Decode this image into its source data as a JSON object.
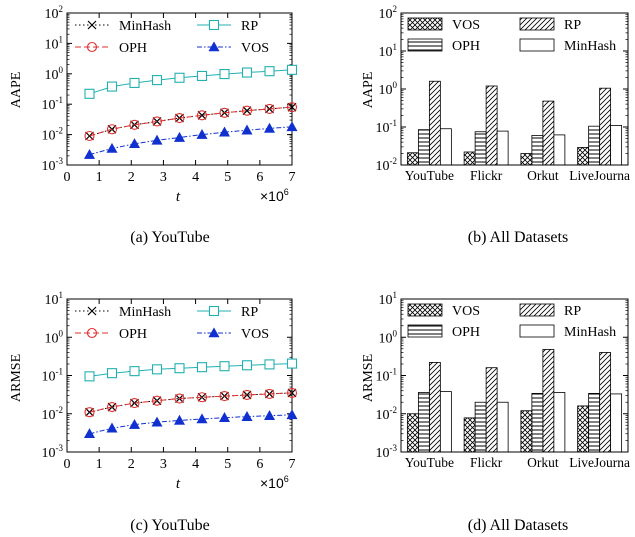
{
  "chart_data": [
    {
      "id": "a",
      "type": "line",
      "caption": "(a) YouTube",
      "xlabel": "t",
      "ylabel": "AAPE",
      "x_multiplier_label": "×10",
      "x_multiplier_exp": "6",
      "yscale": "log",
      "xlim": [
        0,
        7
      ],
      "ylim": [
        0.001,
        100
      ],
      "xticks": [
        "0",
        "1",
        "2",
        "3",
        "4",
        "5",
        "6",
        "7"
      ],
      "yticks_exp": [
        "-3",
        "-2",
        "-1",
        "0",
        "1",
        "2"
      ],
      "x": [
        0.7,
        1.4,
        2.1,
        2.8,
        3.5,
        4.2,
        4.9,
        5.6,
        6.3,
        7.0
      ],
      "series": [
        {
          "name": "MinHash",
          "marker": "x",
          "dash": "1.5,2.5",
          "color": "#000000",
          "values": [
            0.009,
            0.015,
            0.021,
            0.027,
            0.035,
            0.043,
            0.052,
            0.061,
            0.07,
            0.08
          ]
        },
        {
          "name": "OPH",
          "marker": "circle",
          "dash": "6,3",
          "color": "#e03030",
          "values": [
            0.009,
            0.015,
            0.021,
            0.027,
            0.035,
            0.043,
            0.052,
            0.061,
            0.07,
            0.08
          ]
        },
        {
          "name": "RP",
          "marker": "square",
          "dash": "",
          "color": "#22b0b0",
          "values": [
            0.22,
            0.38,
            0.5,
            0.62,
            0.74,
            0.85,
            0.98,
            1.1,
            1.22,
            1.35
          ]
        },
        {
          "name": "VOS",
          "marker": "triangle",
          "dash": "5,2,1.5,2",
          "color": "#1030d0",
          "values": [
            0.0022,
            0.0035,
            0.005,
            0.0065,
            0.008,
            0.01,
            0.012,
            0.014,
            0.016,
            0.018
          ]
        }
      ],
      "legend": {
        "position": "top",
        "columns": 2,
        "order": [
          "MinHash",
          "RP",
          "OPH",
          "VOS"
        ]
      }
    },
    {
      "id": "b",
      "type": "bar",
      "caption": "(b) All Datasets",
      "ylabel": "AAPE",
      "yscale": "log",
      "ylim": [
        0.01,
        100
      ],
      "yticks_exp": [
        "-2",
        "-1",
        "0",
        "1",
        "2"
      ],
      "categories": [
        "YouTube",
        "Flickr",
        "Orkut",
        "LiveJourna"
      ],
      "series": [
        {
          "name": "VOS",
          "pattern": "crosshatch",
          "values": [
            0.021,
            0.022,
            0.02,
            0.029
          ]
        },
        {
          "name": "OPH",
          "pattern": "horizontal",
          "values": [
            0.085,
            0.075,
            0.06,
            0.105
          ]
        },
        {
          "name": "RP",
          "pattern": "diagonal",
          "values": [
            1.6,
            1.2,
            0.48,
            1.05
          ]
        },
        {
          "name": "MinHash",
          "pattern": "none",
          "values": [
            0.09,
            0.078,
            0.062,
            0.11
          ]
        }
      ],
      "legend": {
        "position": "top",
        "columns": 2,
        "order": [
          "VOS",
          "RP",
          "OPH",
          "MinHash"
        ]
      }
    },
    {
      "id": "c",
      "type": "line",
      "caption": "(c) YouTube",
      "xlabel": "t",
      "ylabel": "ARMSE",
      "x_multiplier_label": "×10",
      "x_multiplier_exp": "6",
      "yscale": "log",
      "xlim": [
        0,
        7
      ],
      "ylim": [
        0.001,
        10
      ],
      "xticks": [
        "0",
        "1",
        "2",
        "3",
        "4",
        "5",
        "6",
        "7"
      ],
      "yticks_exp": [
        "-3",
        "-2",
        "-1",
        "0",
        "1"
      ],
      "x": [
        0.7,
        1.4,
        2.1,
        2.8,
        3.5,
        4.2,
        4.9,
        5.6,
        6.3,
        7.0
      ],
      "series": [
        {
          "name": "MinHash",
          "marker": "x",
          "dash": "1.5,2.5",
          "color": "#000000",
          "values": [
            0.011,
            0.015,
            0.019,
            0.022,
            0.025,
            0.027,
            0.029,
            0.031,
            0.033,
            0.035
          ]
        },
        {
          "name": "OPH",
          "marker": "circle",
          "dash": "6,3",
          "color": "#e03030",
          "values": [
            0.011,
            0.015,
            0.019,
            0.022,
            0.025,
            0.027,
            0.029,
            0.031,
            0.033,
            0.035
          ]
        },
        {
          "name": "RP",
          "marker": "square",
          "dash": "",
          "color": "#22b0b0",
          "values": [
            0.095,
            0.115,
            0.13,
            0.145,
            0.155,
            0.165,
            0.175,
            0.185,
            0.195,
            0.205
          ]
        },
        {
          "name": "VOS",
          "marker": "triangle",
          "dash": "5,2,1.5,2",
          "color": "#1030d0",
          "values": [
            0.003,
            0.0042,
            0.0052,
            0.006,
            0.0067,
            0.0073,
            0.0079,
            0.0084,
            0.0089,
            0.0094
          ]
        }
      ],
      "legend": {
        "position": "top",
        "columns": 2,
        "order": [
          "MinHash",
          "RP",
          "OPH",
          "VOS"
        ]
      }
    },
    {
      "id": "d",
      "type": "bar",
      "caption": "(d) All Datasets",
      "ylabel": "ARMSE",
      "yscale": "log",
      "ylim": [
        0.001,
        10
      ],
      "yticks_exp": [
        "-3",
        "-2",
        "-1",
        "0",
        "1"
      ],
      "categories": [
        "YouTube",
        "Flickr",
        "Orkut",
        "LiveJourna"
      ],
      "series": [
        {
          "name": "VOS",
          "pattern": "crosshatch",
          "values": [
            0.01,
            0.0078,
            0.012,
            0.016
          ]
        },
        {
          "name": "OPH",
          "pattern": "horizontal",
          "values": [
            0.036,
            0.02,
            0.034,
            0.034
          ]
        },
        {
          "name": "RP",
          "pattern": "diagonal",
          "values": [
            0.22,
            0.16,
            0.48,
            0.4
          ]
        },
        {
          "name": "MinHash",
          "pattern": "none",
          "values": [
            0.038,
            0.02,
            0.036,
            0.033
          ]
        }
      ],
      "legend": {
        "position": "top",
        "columns": 2,
        "order": [
          "VOS",
          "RP",
          "OPH",
          "MinHash"
        ]
      }
    }
  ]
}
